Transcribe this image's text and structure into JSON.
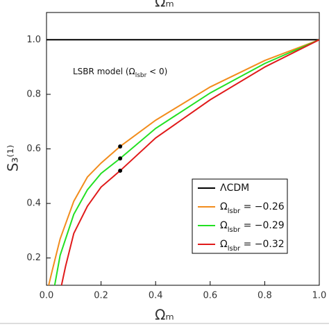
{
  "chart_data": {
    "type": "line",
    "top_label": "Ωₘ",
    "x_label": "Ωₘ",
    "y_label": "S₃⁽¹⁾",
    "annotation": {
      "text": "LSBR model (Ω",
      "sub": "lsbr",
      "rest": " < 0)"
    },
    "xlim": [
      0,
      1
    ],
    "ylim": [
      0.1,
      1.1
    ],
    "xticks": [
      {
        "value": 0,
        "label": "0.0"
      },
      0.2,
      0.4,
      0.6,
      0.8,
      {
        "value": 1,
        "label": "1.0"
      }
    ],
    "yticks": [
      0.2,
      0.4,
      0.6,
      0.8,
      {
        "value": 1,
        "label": "1.0"
      }
    ],
    "series": [
      {
        "name": "ΛCDM",
        "color": "#000000",
        "x": [
          0,
          1
        ],
        "values": [
          1,
          1
        ]
      },
      {
        "name": "Ω",
        "name_sub": "lsbr",
        "name_rest": " = −0.26",
        "color": "#f28c1c",
        "x": [
          0.008,
          0.02,
          0.05,
          0.1,
          0.15,
          0.2,
          0.27,
          0.4,
          0.6,
          0.8,
          1.0
        ],
        "values": [
          0.1,
          0.15,
          0.27,
          0.408,
          0.497,
          0.548,
          0.609,
          0.705,
          0.827,
          0.924,
          1.0
        ],
        "marker_x": 0.27,
        "marker_value": 0.609
      },
      {
        "name": "Ω",
        "name_sub": "lsbr",
        "name_rest": " = −0.29",
        "color": "#22e022",
        "x": [
          0.03,
          0.05,
          0.1,
          0.15,
          0.2,
          0.27,
          0.4,
          0.6,
          0.8,
          1.0
        ],
        "values": [
          0.1,
          0.21,
          0.36,
          0.45,
          0.51,
          0.565,
          0.675,
          0.805,
          0.913,
          1.0
        ],
        "marker_x": 0.27,
        "marker_value": 0.565
      },
      {
        "name": "Ω",
        "name_sub": "lsbr",
        "name_rest": " = −0.32",
        "color": "#e01a1a",
        "x": [
          0.055,
          0.07,
          0.1,
          0.15,
          0.2,
          0.27,
          0.4,
          0.6,
          0.8,
          1.0
        ],
        "values": [
          0.1,
          0.17,
          0.29,
          0.39,
          0.46,
          0.52,
          0.64,
          0.78,
          0.9,
          1.0
        ],
        "marker_x": 0.27,
        "marker_value": 0.52
      }
    ]
  }
}
